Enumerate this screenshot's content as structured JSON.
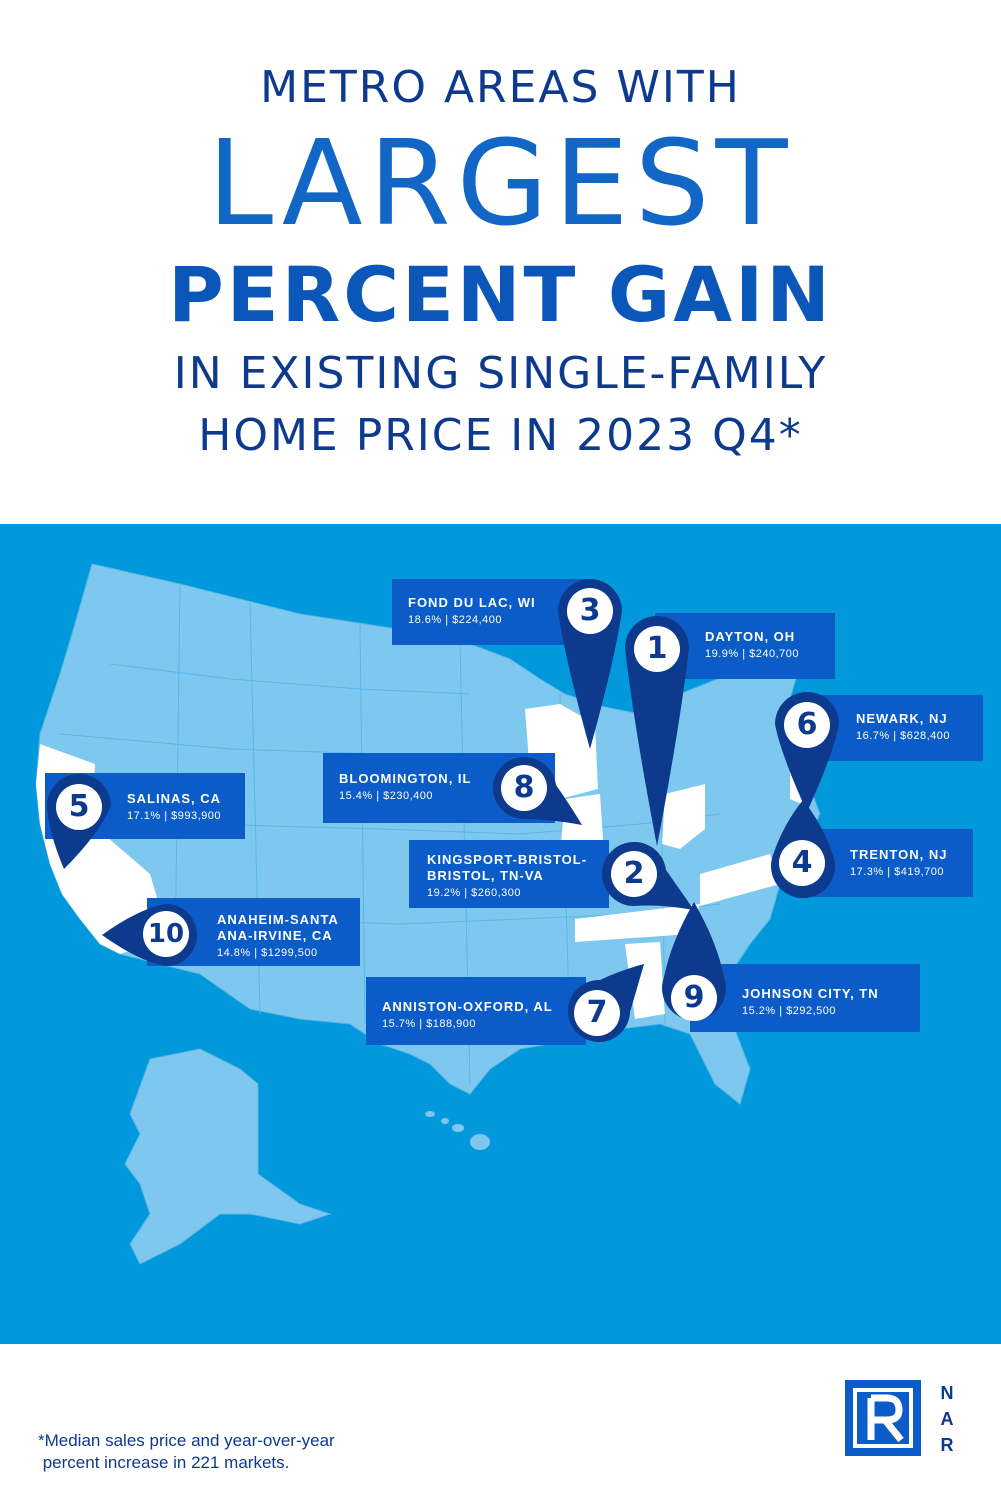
{
  "title": {
    "line1": "METRO AREAS WITH",
    "line2": "LARGEST",
    "line3": "PERCENT GAIN",
    "line4": "IN EXISTING SINGLE-FAMILY",
    "line5": "HOME PRICE IN 2023 Q4*"
  },
  "markers": [
    {
      "rank": "1",
      "name": "DAYTON, OH",
      "stat": "19.9% | $240,700"
    },
    {
      "rank": "2",
      "name": "KINGSPORT-BRISTOL-BRISTOL, TN-VA",
      "name_line1": "KINGSPORT-BRISTOL-",
      "name_line2": "BRISTOL, TN-VA",
      "stat": "19.2% | $260,300"
    },
    {
      "rank": "3",
      "name": "FOND DU LAC, WI",
      "stat": "18.6% | $224,400"
    },
    {
      "rank": "4",
      "name": "TRENTON, NJ",
      "stat": "17.3% | $419,700"
    },
    {
      "rank": "5",
      "name": "SALINAS, CA",
      "stat": "17.1% | $993,900"
    },
    {
      "rank": "6",
      "name": "NEWARK, NJ",
      "stat": "16.7% | $628,400"
    },
    {
      "rank": "7",
      "name": "ANNISTON-OXFORD, AL",
      "stat": "15.7% | $188,900"
    },
    {
      "rank": "8",
      "name": "BLOOMINGTON, IL",
      "stat": "15.4% | $230,400"
    },
    {
      "rank": "9",
      "name": "JOHNSON CITY, TN",
      "stat": "15.2% | $292,500"
    },
    {
      "rank": "10",
      "name": "ANAHEIM-SANTA ANA-IRVINE, CA",
      "name_line1": "ANAHEIM-SANTA",
      "name_line2": "ANA-IRVINE, CA",
      "stat": "14.8% | $1299,500"
    }
  ],
  "footnote": "*Median sales price and year-over-year\n percent increase in 221 markets.",
  "logo": {
    "letters": [
      "N",
      "A",
      "R"
    ],
    "mark": "R"
  },
  "colors": {
    "title_dark": "#0d3a8c",
    "title_bright": "#1166c6",
    "map_background": "#0299dc",
    "land": "#7ec8ef",
    "highlight_state": "#ffffff",
    "label_box": "#0b5cc8",
    "pin_dark": "#0d3a8c"
  }
}
